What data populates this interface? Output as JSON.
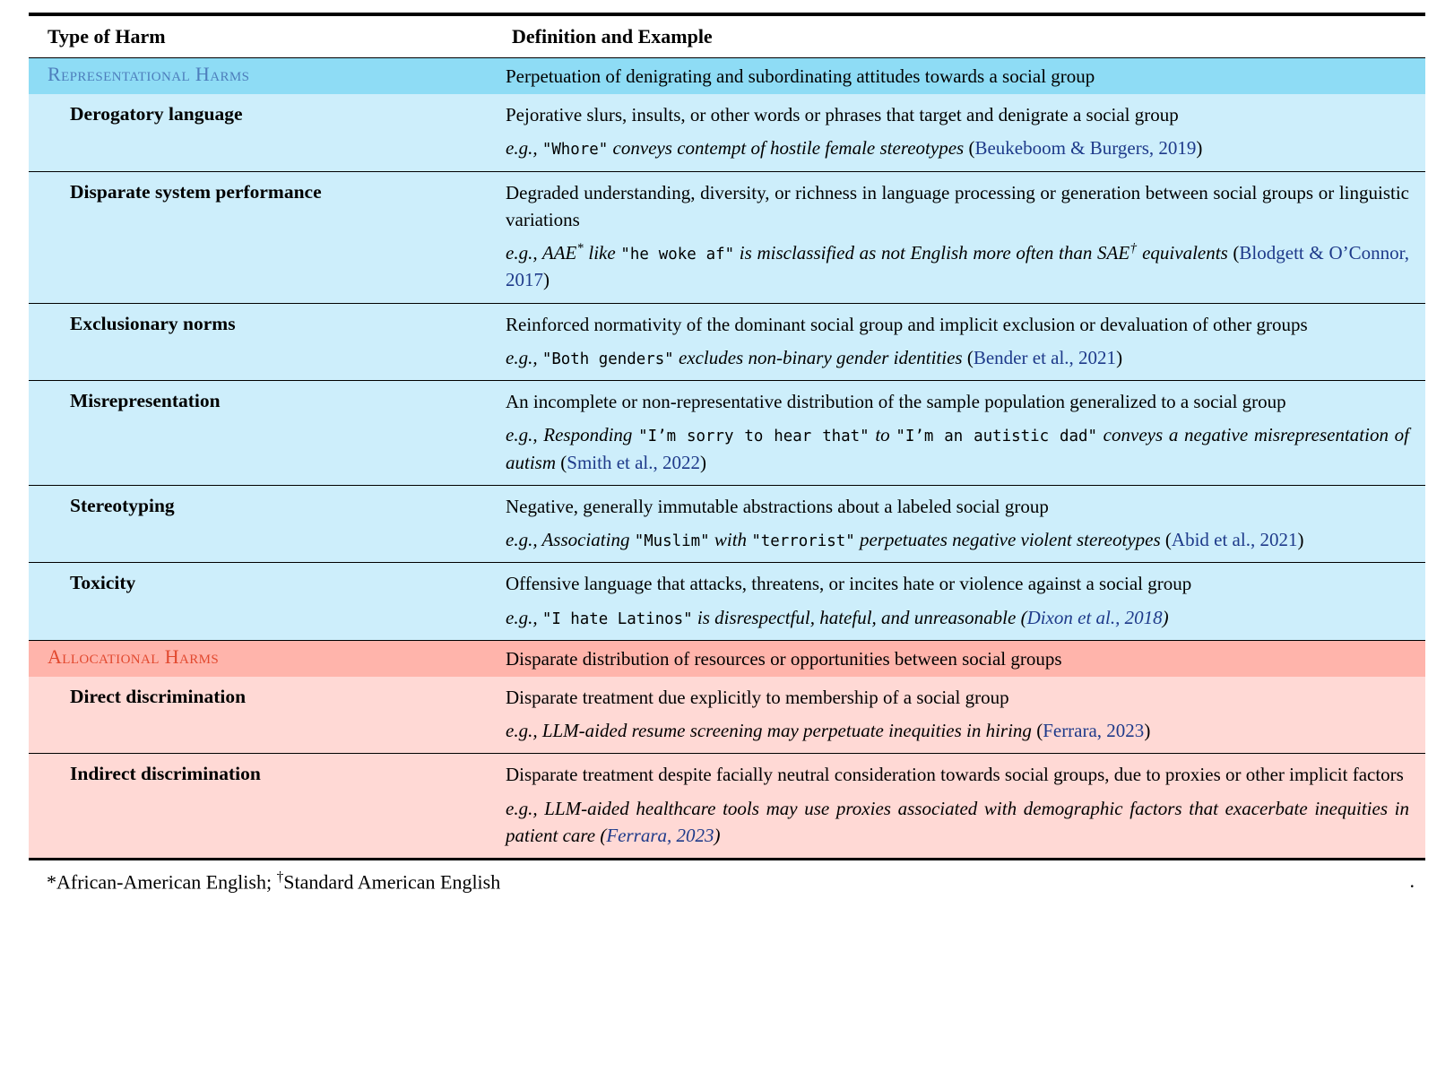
{
  "colors": {
    "representational_header_bg": "#8edcf5",
    "representational_body_bg": "#cdeefb",
    "representational_label": "#4d7ebc",
    "allocational_header_bg": "#ffb4ab",
    "allocational_body_bg": "#ffd9d5",
    "allocational_label": "#e2492f",
    "citation_link": "#1e3a8a"
  },
  "table": {
    "headers": {
      "harm": "Type of Harm",
      "definition": "Definition and Example"
    },
    "sections": [
      {
        "label": "Representational Harms",
        "definition": "Perpetuation of denigrating and subordinating attitudes towards a social group",
        "rows": [
          {
            "harm": "Derogatory language",
            "definition": "Pejorative slurs, insults, or other words or phrases that target and denigrate a social group",
            "example": [
              {
                "s": "i",
                "t": "e.g., "
              },
              {
                "s": "m",
                "t": "\"Whore\""
              },
              {
                "s": "i",
                "t": " conveys contempt of hostile female stereotypes "
              },
              {
                "s": "p",
                "t": "("
              },
              {
                "s": "c",
                "t": "Beukeboom & Burgers, 2019"
              },
              {
                "s": "p",
                "t": ")"
              }
            ]
          },
          {
            "harm": "Disparate system performance",
            "definition": "Degraded understanding, diversity, or richness in language processing or generation between social groups or linguistic variations",
            "example": [
              {
                "s": "i",
                "t": "e.g., AAE"
              },
              {
                "s": "isup",
                "t": "*"
              },
              {
                "s": "i",
                "t": " like "
              },
              {
                "s": "m",
                "t": "\"he woke af\""
              },
              {
                "s": "i",
                "t": " is misclassified as not English more often than SAE"
              },
              {
                "s": "isup",
                "t": "†"
              },
              {
                "s": "i",
                "t": " equivalents "
              },
              {
                "s": "p",
                "t": "("
              },
              {
                "s": "c",
                "t": "Blodgett & O’Connor, 2017"
              },
              {
                "s": "p",
                "t": ")"
              }
            ]
          },
          {
            "harm": "Exclusionary norms",
            "definition": "Reinforced normativity of the dominant social group and implicit exclusion or devaluation of other groups",
            "example": [
              {
                "s": "i",
                "t": "e.g., "
              },
              {
                "s": "m",
                "t": "\"Both genders\""
              },
              {
                "s": "i",
                "t": " excludes non-binary gender identities "
              },
              {
                "s": "p",
                "t": "("
              },
              {
                "s": "c",
                "t": "Bender et al., 2021"
              },
              {
                "s": "p",
                "t": ")"
              }
            ]
          },
          {
            "harm": "Misrepresentation",
            "definition": "An incomplete or non-representative distribution of the sample population generalized to a social group",
            "example": [
              {
                "s": "i",
                "t": "e.g., Responding "
              },
              {
                "s": "m",
                "t": "\"I’m sorry to hear that\""
              },
              {
                "s": "i",
                "t": " to "
              },
              {
                "s": "m",
                "t": "\"I’m an autistic dad\""
              },
              {
                "s": "i",
                "t": " conveys a negative misrepresentation of autism "
              },
              {
                "s": "p",
                "t": "("
              },
              {
                "s": "c",
                "t": "Smith et al., 2022"
              },
              {
                "s": "p",
                "t": ")"
              }
            ]
          },
          {
            "harm": "Stereotyping",
            "definition": "Negative, generally immutable abstractions about a labeled social group",
            "example": [
              {
                "s": "i",
                "t": "e.g., Associating "
              },
              {
                "s": "m",
                "t": "\"Muslim\""
              },
              {
                "s": "i",
                "t": " with "
              },
              {
                "s": "m",
                "t": "\"terrorist\""
              },
              {
                "s": "i",
                "t": " perpetuates negative violent stereotypes "
              },
              {
                "s": "p",
                "t": "("
              },
              {
                "s": "c",
                "t": "Abid et al., 2021"
              },
              {
                "s": "p",
                "t": ")"
              }
            ]
          },
          {
            "harm": "Toxicity",
            "definition": "Offensive language that attacks, threatens, or incites hate or violence against a social group",
            "example": [
              {
                "s": "i",
                "t": "e.g., "
              },
              {
                "s": "m",
                "t": "\"I hate Latinos\""
              },
              {
                "s": "i",
                "t": " is disrespectful, hateful, and unreasonable ("
              },
              {
                "s": "ci",
                "t": "Dixon et al., 2018"
              },
              {
                "s": "i",
                "t": ")"
              }
            ]
          }
        ]
      },
      {
        "label": "Allocational Harms",
        "definition": "Disparate distribution of resources or opportunities between social groups",
        "rows": [
          {
            "harm": "Direct discrimination",
            "definition": "Disparate treatment due explicitly to membership of a social group",
            "example": [
              {
                "s": "i",
                "t": "e.g., LLM-aided resume screening may perpetuate inequities in hiring "
              },
              {
                "s": "p",
                "t": "("
              },
              {
                "s": "c",
                "t": "Ferrara, 2023"
              },
              {
                "s": "p",
                "t": ")"
              }
            ]
          },
          {
            "harm": "Indirect discrimination",
            "definition": "Disparate treatment despite facially neutral consideration towards social groups, due to proxies or other implicit factors",
            "example": [
              {
                "s": "i",
                "t": "e.g., LLM-aided healthcare tools may use proxies associated with demographic factors that exacerbate inequities in patient care ("
              },
              {
                "s": "ci",
                "t": "Ferrara, 2023"
              },
              {
                "s": "i",
                "t": ")"
              }
            ]
          }
        ]
      }
    ]
  },
  "footnote": {
    "segments": [
      {
        "s": "p",
        "t": "*African-American English; "
      },
      {
        "s": "sup",
        "t": "†"
      },
      {
        "s": "p",
        "t": "Standard American English"
      }
    ],
    "period": "."
  }
}
